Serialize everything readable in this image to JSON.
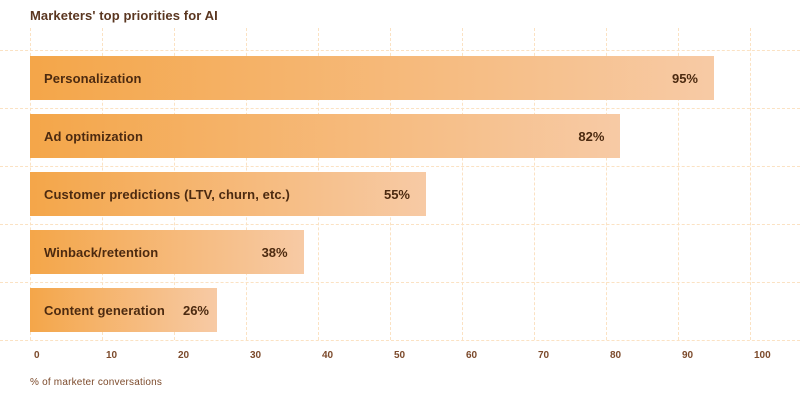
{
  "title": "Marketers' top priorities for AI",
  "chart_data": {
    "type": "bar",
    "orientation": "horizontal",
    "title": "Marketers' top priorities for AI",
    "categories": [
      "Personalization",
      "Ad optimization",
      "Customer predictions (LTV, churn, etc.)",
      "Winback/retention",
      "Content generation"
    ],
    "values": [
      95,
      82,
      55,
      38,
      26
    ],
    "value_labels": [
      "95%",
      "82%",
      "55%",
      "38%",
      "26%"
    ],
    "xlabel": "% of marketer conversations",
    "ylabel": "",
    "xlim": [
      0,
      100
    ],
    "xticks": [
      0,
      10,
      20,
      30,
      40,
      50,
      60,
      70,
      80,
      90,
      100
    ],
    "grid": "dashed",
    "legend": "none",
    "colors": {
      "bar_gradient_start": "#f4a649",
      "bar_gradient_end": "#f7caa5",
      "title_text": "#5a3620",
      "bar_text": "#4c2a10",
      "tick_text": "#7c4a2b",
      "gridline": "#fbe2c3",
      "background": "#ffffff"
    }
  }
}
